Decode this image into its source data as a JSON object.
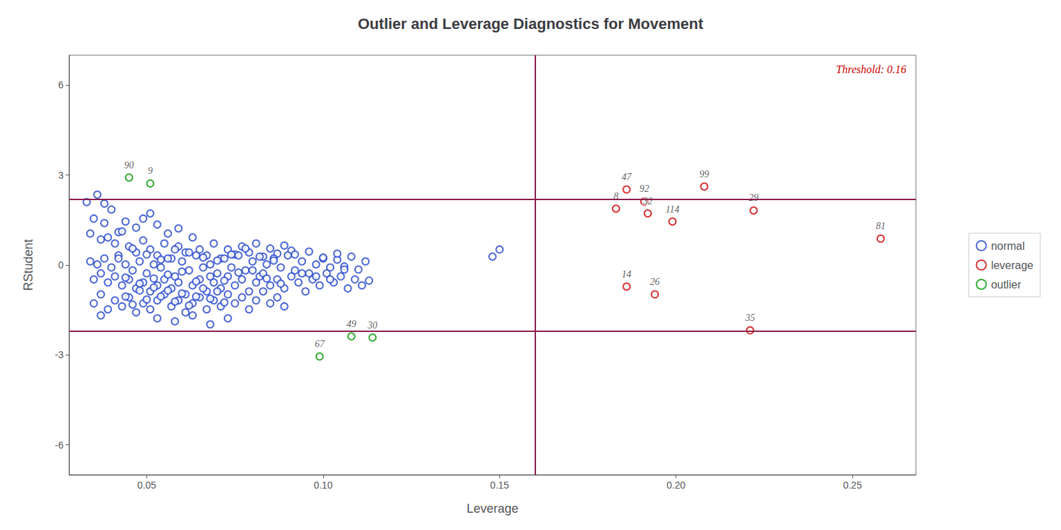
{
  "chart_data": {
    "type": "scatter",
    "title": "Outlier and Leverage Diagnostics for Movement",
    "xlabel": "Leverage",
    "ylabel": "RStudent",
    "xlim": [
      0.028,
      0.268
    ],
    "ylim": [
      -7.0,
      7.0
    ],
    "xticks": [
      0.05,
      {
        "value": 0.1,
        "label": "0.10"
      },
      0.15,
      {
        "value": 0.2,
        "label": "0.20"
      },
      0.25
    ],
    "yticks": [
      -6,
      -3,
      0,
      3,
      6
    ],
    "grid": false,
    "legend": "right",
    "series": [
      {
        "name": "normal",
        "color": "#2244CC",
        "marker": "open_circle",
        "x": [
          0.033,
          0.036,
          0.038,
          0.04,
          0.035,
          0.038,
          0.042,
          0.044,
          0.047,
          0.049,
          0.051,
          0.053,
          0.056,
          0.059,
          0.034,
          0.037,
          0.039,
          0.041,
          0.043,
          0.045,
          0.047,
          0.049,
          0.051,
          0.053,
          0.055,
          0.057,
          0.059,
          0.061,
          0.063,
          0.065,
          0.067,
          0.069,
          0.071,
          0.073,
          0.075,
          0.077,
          0.079,
          0.081,
          0.083,
          0.085,
          0.087,
          0.089,
          0.091,
          0.034,
          0.036,
          0.038,
          0.04,
          0.042,
          0.044,
          0.046,
          0.048,
          0.05,
          0.052,
          0.054,
          0.056,
          0.058,
          0.06,
          0.062,
          0.064,
          0.066,
          0.068,
          0.07,
          0.072,
          0.074,
          0.076,
          0.078,
          0.08,
          0.082,
          0.084,
          0.086,
          0.088,
          0.09,
          0.092,
          0.094,
          0.096,
          0.098,
          0.1,
          0.102,
          0.104,
          0.106,
          0.108,
          0.11,
          0.112,
          0.035,
          0.037,
          0.039,
          0.041,
          0.043,
          0.045,
          0.047,
          0.049,
          0.051,
          0.053,
          0.055,
          0.057,
          0.059,
          0.061,
          0.063,
          0.065,
          0.067,
          0.069,
          0.071,
          0.073,
          0.075,
          0.077,
          0.079,
          0.081,
          0.083,
          0.085,
          0.087,
          0.089,
          0.091,
          0.093,
          0.095,
          0.097,
          0.099,
          0.101,
          0.103,
          0.105,
          0.107,
          0.109,
          0.111,
          0.113,
          0.035,
          0.037,
          0.039,
          0.041,
          0.043,
          0.045,
          0.047,
          0.049,
          0.051,
          0.053,
          0.055,
          0.057,
          0.059,
          0.061,
          0.063,
          0.065,
          0.067,
          0.069,
          0.071,
          0.073,
          0.075,
          0.077,
          0.079,
          0.081,
          0.083,
          0.085,
          0.087,
          0.089,
          0.053,
          0.058,
          0.063,
          0.068,
          0.073,
          0.037,
          0.042,
          0.044,
          0.046,
          0.048,
          0.05,
          0.052,
          0.054,
          0.056,
          0.058,
          0.06,
          0.062,
          0.064,
          0.066,
          0.068,
          0.07,
          0.072,
          0.074,
          0.076,
          0.078,
          0.08,
          0.082,
          0.084,
          0.086,
          0.088,
          0.092,
          0.094,
          0.096,
          0.098,
          0.1,
          0.102,
          0.104,
          0.106,
          0.044,
          0.046,
          0.048,
          0.05,
          0.052,
          0.054,
          0.056,
          0.058,
          0.06,
          0.062,
          0.064,
          0.066,
          0.068,
          0.07,
          0.072,
          0.15,
          0.148
        ],
        "values": [
          2.1,
          2.35,
          2.05,
          1.85,
          1.55,
          1.4,
          1.1,
          1.45,
          1.25,
          1.55,
          1.72,
          1.35,
          1.05,
          1.22,
          1.05,
          0.85,
          0.92,
          0.72,
          1.12,
          0.62,
          0.42,
          0.82,
          0.52,
          0.32,
          0.72,
          0.22,
          0.62,
          0.42,
          0.92,
          0.52,
          0.32,
          0.72,
          0.22,
          0.52,
          0.35,
          0.62,
          0.42,
          0.72,
          0.28,
          0.55,
          0.38,
          0.65,
          0.48,
          0.12,
          0.02,
          0.22,
          -0.08,
          0.32,
          0.02,
          -0.18,
          0.12,
          -0.28,
          0.02,
          -0.08,
          0.22,
          -0.38,
          0.12,
          -0.18,
          0.32,
          -0.08,
          0.02,
          -0.28,
          0.22,
          -0.08,
          0.32,
          -0.18,
          0.12,
          -0.38,
          0.02,
          0.22,
          -0.08,
          0.32,
          -0.18,
          0.12,
          -0.28,
          0.02,
          0.22,
          -0.08,
          0.18,
          -0.05,
          0.28,
          -0.15,
          0.12,
          -0.48,
          -0.28,
          -0.58,
          -0.38,
          -0.68,
          -0.48,
          -0.78,
          -0.58,
          -0.88,
          -0.68,
          -0.48,
          -0.78,
          -0.58,
          -0.98,
          -0.68,
          -0.48,
          -0.88,
          -0.58,
          -0.78,
          -0.38,
          -0.68,
          -0.48,
          -0.88,
          -0.58,
          -0.28,
          -0.68,
          -0.48,
          -0.78,
          -0.38,
          -0.58,
          -0.88,
          -0.48,
          -0.68,
          -0.28,
          -0.58,
          -0.38,
          -0.78,
          -0.48,
          -0.68,
          -0.52,
          -1.28,
          -0.98,
          -1.48,
          -1.18,
          -1.38,
          -1.08,
          -1.58,
          -1.28,
          -1.48,
          -1.18,
          -0.98,
          -1.38,
          -1.18,
          -1.58,
          -1.28,
          -1.08,
          -1.48,
          -1.18,
          -1.38,
          -0.98,
          -1.28,
          -1.08,
          -1.48,
          -1.18,
          -0.88,
          -1.28,
          -1.08,
          -1.38,
          -1.78,
          -1.88,
          -1.68,
          -1.98,
          -1.78,
          -1.68,
          0.22,
          -0.42,
          0.55,
          -0.62,
          0.35,
          -0.45,
          0.18,
          -0.32,
          0.52,
          -0.22,
          0.42,
          -0.55,
          0.25,
          -0.38,
          0.15,
          -0.52,
          0.35,
          -0.25,
          0.55,
          -0.18,
          0.28,
          -0.45,
          0.15,
          -0.62,
          0.35,
          -0.28,
          0.45,
          -0.38,
          0.25,
          -0.48,
          0.38,
          -0.15,
          -1.05,
          -1.32,
          -0.85,
          -1.15,
          -0.75,
          -1.05,
          -0.85,
          -1.22,
          -0.95,
          -1.35,
          -1.05,
          -0.78,
          -1.12,
          -0.88,
          -1.25,
          0.52,
          0.28
        ]
      },
      {
        "name": "leverage",
        "color": "#CC0000",
        "marker": "open_circle",
        "x": [
          0.186,
          0.191,
          0.183,
          0.192,
          0.199,
          0.208,
          0.222,
          0.258,
          0.186,
          0.194,
          0.221
        ],
        "values": [
          2.52,
          2.12,
          1.88,
          1.72,
          1.45,
          2.62,
          1.82,
          0.88,
          -0.72,
          -0.98,
          -2.18
        ],
        "labels": [
          "47",
          "92",
          "8",
          "32",
          "114",
          "99",
          "29",
          "81",
          "14",
          "26",
          "35"
        ]
      },
      {
        "name": "outlier",
        "color": "#009900",
        "marker": "open_circle",
        "x": [
          0.045,
          0.051,
          0.108,
          0.114,
          0.099
        ],
        "values": [
          2.92,
          2.72,
          -2.38,
          -2.42,
          -3.05
        ],
        "labels": [
          "90",
          "9",
          "49",
          "30",
          "67"
        ]
      }
    ],
    "reference_lines": [
      {
        "axis": "y",
        "value": 2.2,
        "color": "#8B1A4A"
      },
      {
        "axis": "y",
        "value": -2.2,
        "color": "#8B1A4A"
      },
      {
        "axis": "x",
        "value": 0.16,
        "color": "#8B1A4A"
      }
    ],
    "annotations": [
      {
        "text": "Threshold: 0.16",
        "color": "#CC0000"
      }
    ]
  }
}
